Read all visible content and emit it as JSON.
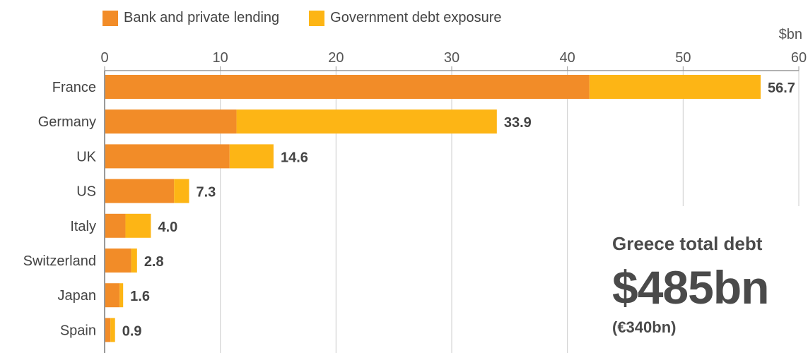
{
  "colors": {
    "bank_lending": "#f28c28",
    "government_debt": "#fdb515",
    "axis": "#999999",
    "grid": "#cccccc",
    "text": "#444444"
  },
  "legend": [
    {
      "label": "Bank and private lending",
      "color": "#f28c28"
    },
    {
      "label": "Government debt exposure",
      "color": "#fdb515"
    }
  ],
  "callout": {
    "label": "Greece total debt",
    "value": "$485bn",
    "sub": "(€340bn)"
  },
  "chart_data": {
    "type": "bar",
    "orientation": "horizontal",
    "stacked": true,
    "unit": "$bn",
    "categories": [
      "France",
      "Germany",
      "UK",
      "US",
      "Italy",
      "Switzerland",
      "Japan",
      "Spain"
    ],
    "series": [
      {
        "name": "Bank and private lending",
        "values": [
          41.9,
          11.4,
          10.8,
          6.0,
          1.8,
          2.3,
          1.3,
          0.5
        ]
      },
      {
        "name": "Government debt exposure",
        "values": [
          14.8,
          22.5,
          3.8,
          1.3,
          2.2,
          0.5,
          0.3,
          0.4
        ]
      }
    ],
    "totals": [
      56.7,
      33.9,
      14.6,
      7.3,
      4.0,
      2.8,
      1.6,
      0.9
    ],
    "total_labels": [
      "56.7",
      "33.9",
      "14.6",
      "7.3",
      "4.0",
      "2.8",
      "1.6",
      "0.9"
    ],
    "xlim": [
      0,
      60
    ],
    "xticks": [
      0,
      10,
      20,
      30,
      40,
      50,
      60
    ],
    "xtick_labels": [
      "0",
      "10",
      "20",
      "30",
      "40",
      "50",
      "60"
    ],
    "grid": true,
    "legend_position": "top-left"
  }
}
